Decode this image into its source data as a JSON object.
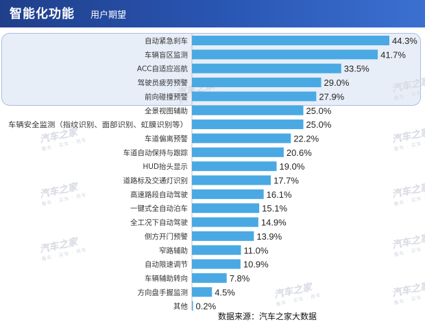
{
  "header": {
    "title": "智能化功能",
    "subtitle": "用户期望"
  },
  "watermark": {
    "logo": "汽车之家",
    "tagline": "看车 · 买车 · 用车"
  },
  "source_note": "数据来源：汽车之家大数据",
  "colors": {
    "bar": "#4aa9e3",
    "header": "#2a57b5",
    "highlight": "#e8eef8"
  },
  "chart_data": {
    "type": "bar",
    "orientation": "horizontal",
    "title": "智能化功能 用户期望",
    "unit": "%",
    "xlim": [
      0,
      44.3
    ],
    "highlighted_count": 5,
    "categories": [
      "自动紧急刹车",
      "车辆盲区监测",
      "ACC自适应巡航",
      "驾驶员疲劳预警",
      "前向碰撞预警",
      "全景视图辅助",
      "车辆安全监测（指纹识别、面部识别、虹膜识别等）",
      "车道偏离预警",
      "车道自动保持与跟踪",
      "HUD抬头显示",
      "道路标及交通灯识别",
      "高速路段自动驾驶",
      "一键式全自动泊车",
      "全工况下自动驾驶",
      "侧方开门预警",
      "窄路辅助",
      "自动限速调节",
      "车辆辅助转向",
      "方向盘手握监测",
      "其他"
    ],
    "values": [
      44.3,
      41.7,
      33.5,
      29.0,
      27.9,
      25.0,
      25.0,
      22.2,
      20.6,
      19.0,
      17.7,
      16.1,
      15.1,
      14.9,
      13.9,
      11.0,
      10.9,
      7.8,
      4.5,
      0.2
    ],
    "value_labels": [
      "44.3%",
      "41.7%",
      "33.5%",
      "29.0%",
      "27.9%",
      "25.0%",
      "25.0%",
      "22.2%",
      "20.6%",
      "19.0%",
      "17.7%",
      "16.1%",
      "15.1%",
      "14.9%",
      "13.9%",
      "11.0%",
      "10.9%",
      "7.8%",
      "4.5%",
      "0.2%"
    ]
  }
}
